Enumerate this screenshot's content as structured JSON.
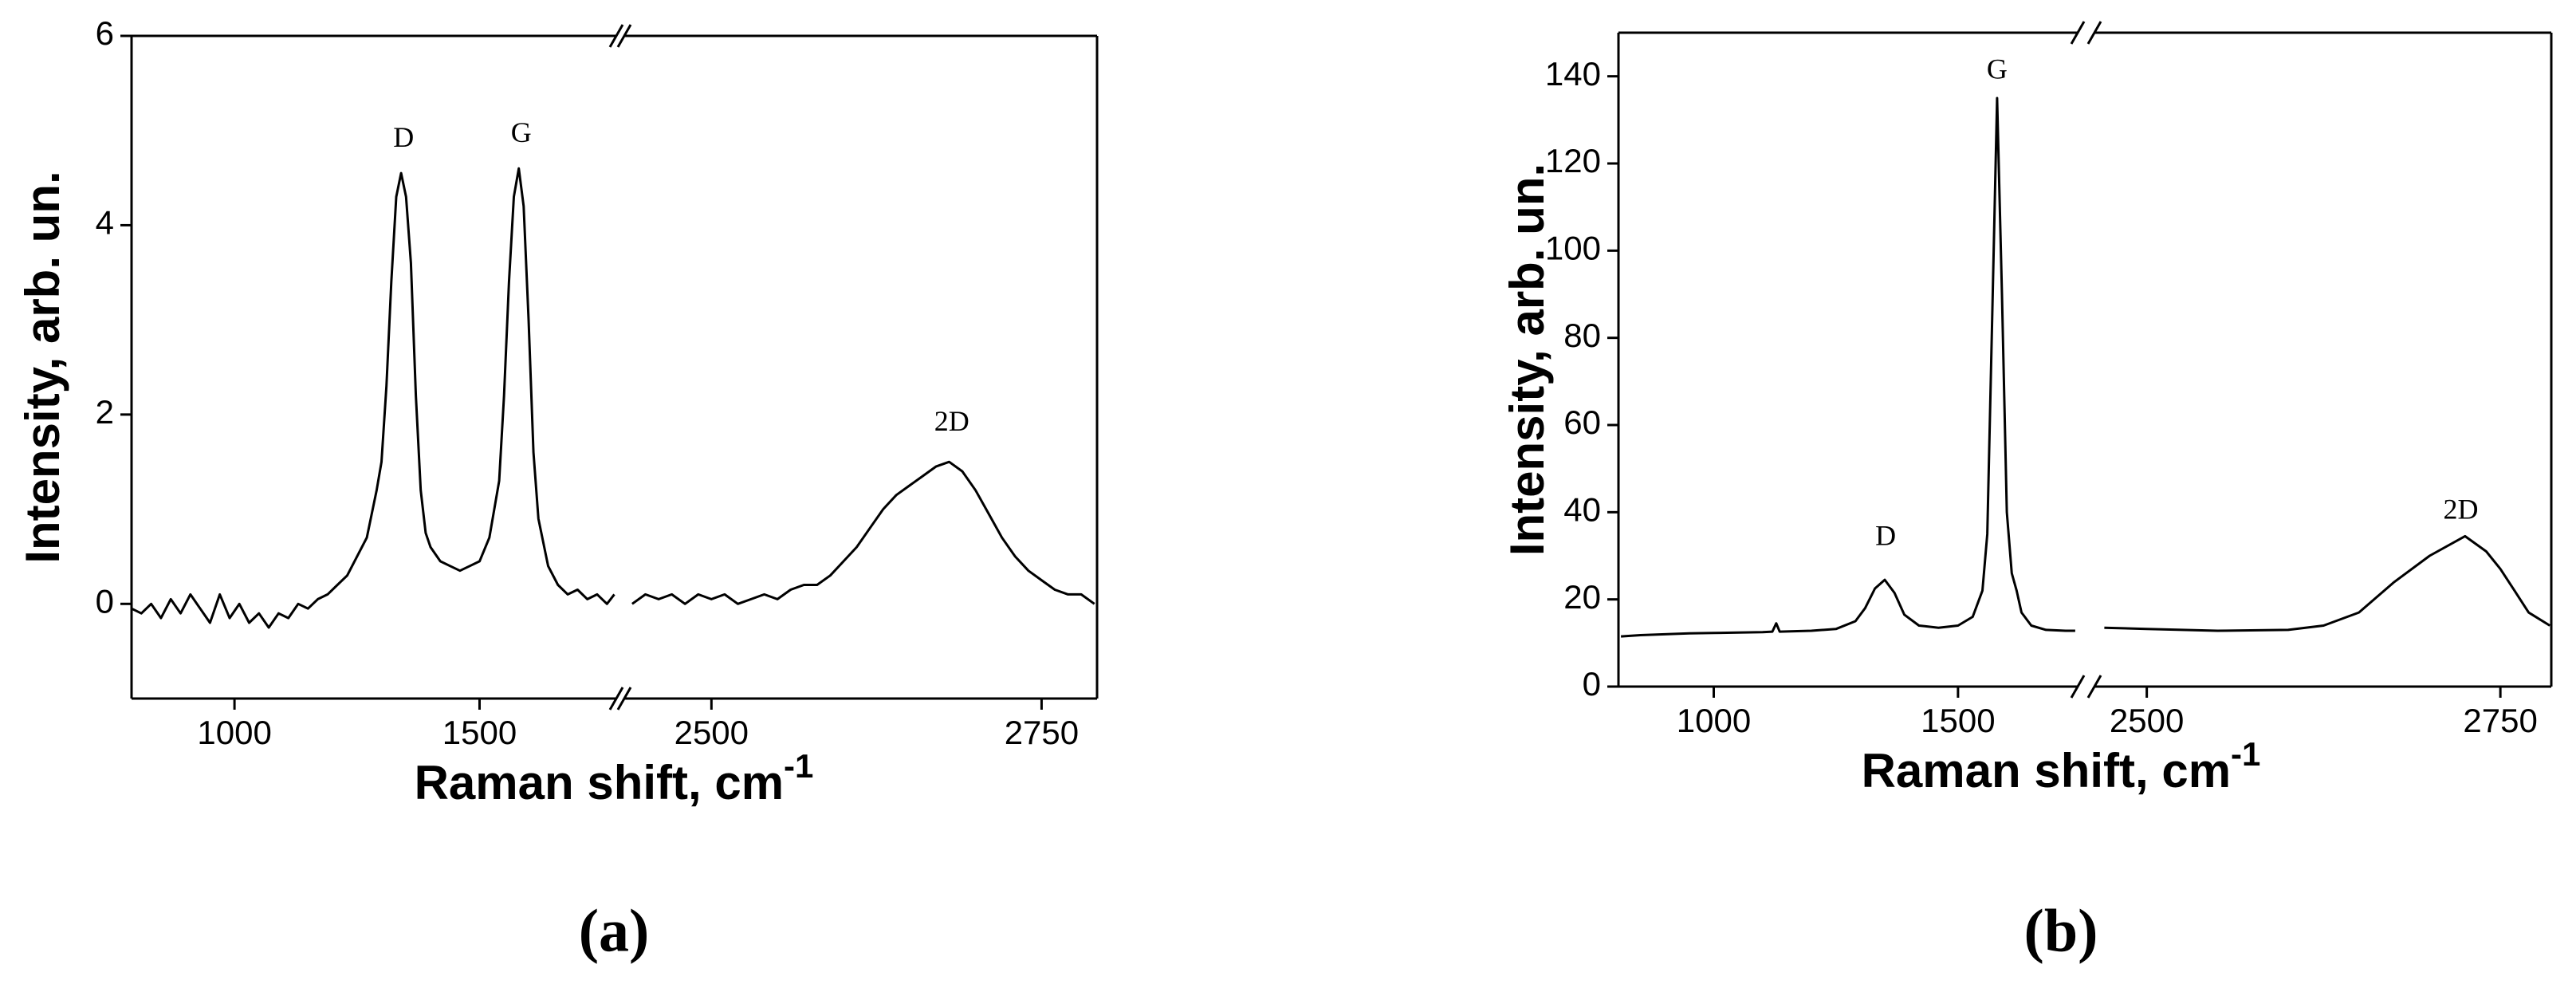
{
  "chart_data": [
    {
      "type": "line",
      "label": "(a)",
      "ylabel": "Intensity, arb. un.",
      "xlabel": "Raman shift, cm",
      "xlabel_sup": "-1",
      "color": "#000000",
      "ylim": [
        -1,
        6
      ],
      "yticks": [
        0,
        2,
        4,
        6
      ],
      "segments": [
        {
          "xlim": [
            790,
            1779
          ],
          "xticks": [
            1000,
            1500
          ],
          "x": [
            790,
            810,
            830,
            850,
            870,
            890,
            910,
            930,
            950,
            970,
            990,
            1010,
            1030,
            1050,
            1070,
            1090,
            1110,
            1130,
            1150,
            1170,
            1190,
            1210,
            1230,
            1250,
            1270,
            1290,
            1300,
            1310,
            1320,
            1330,
            1340,
            1350,
            1360,
            1370,
            1380,
            1390,
            1400,
            1420,
            1440,
            1460,
            1480,
            1500,
            1520,
            1540,
            1550,
            1560,
            1570,
            1580,
            1590,
            1600,
            1610,
            1620,
            1640,
            1660,
            1680,
            1700,
            1720,
            1740,
            1760,
            1775
          ],
          "values": [
            -0.05,
            -0.1,
            0.0,
            -0.15,
            0.05,
            -0.1,
            0.1,
            -0.05,
            -0.2,
            0.1,
            -0.15,
            0.0,
            -0.2,
            -0.1,
            -0.25,
            -0.1,
            -0.15,
            0.0,
            -0.05,
            0.05,
            0.1,
            0.2,
            0.3,
            0.5,
            0.7,
            1.2,
            1.5,
            2.3,
            3.4,
            4.3,
            4.55,
            4.3,
            3.6,
            2.2,
            1.2,
            0.75,
            0.6,
            0.45,
            0.4,
            0.35,
            0.4,
            0.45,
            0.7,
            1.3,
            2.2,
            3.4,
            4.3,
            4.6,
            4.2,
            3.0,
            1.6,
            0.9,
            0.4,
            0.2,
            0.1,
            0.15,
            0.05,
            0.1,
            0.0,
            0.1
          ]
        },
        {
          "xlim": [
            2434,
            2792
          ],
          "xticks": [
            2500,
            2750
          ],
          "x": [
            2440,
            2450,
            2460,
            2470,
            2480,
            2490,
            2500,
            2510,
            2520,
            2530,
            2540,
            2550,
            2560,
            2570,
            2580,
            2590,
            2600,
            2610,
            2620,
            2630,
            2640,
            2650,
            2660,
            2670,
            2680,
            2690,
            2700,
            2710,
            2720,
            2730,
            2740,
            2750,
            2760,
            2770,
            2780,
            2790
          ],
          "values": [
            0.0,
            0.1,
            0.05,
            0.1,
            0.0,
            0.1,
            0.05,
            0.1,
            0.0,
            0.05,
            0.1,
            0.05,
            0.15,
            0.2,
            0.2,
            0.3,
            0.45,
            0.6,
            0.8,
            1.0,
            1.15,
            1.25,
            1.35,
            1.45,
            1.5,
            1.4,
            1.2,
            0.95,
            0.7,
            0.5,
            0.35,
            0.25,
            0.15,
            0.1,
            0.1,
            0.0
          ]
        }
      ],
      "annotations": [
        {
          "text": "D",
          "x": 1345,
          "y": 4.9
        },
        {
          "text": "G",
          "x": 1585,
          "y": 4.95
        },
        {
          "text": "2D",
          "x": 2682,
          "y": 1.9
        }
      ]
    },
    {
      "type": "line",
      "label": "(b)",
      "ylabel": "Intensity, arb. un.",
      "xlabel": "Raman shift, cm",
      "xlabel_sup": "-1",
      "color": "#000000",
      "ylim": [
        0,
        150
      ],
      "yticks": [
        0,
        20,
        40,
        60,
        80,
        100,
        120,
        140
      ],
      "segments": [
        {
          "xlim": [
            805,
            1745
          ],
          "xticks": [
            1000,
            1500
          ],
          "x": [
            810,
            850,
            900,
            950,
            1000,
            1050,
            1100,
            1120,
            1128,
            1135,
            1200,
            1250,
            1290,
            1310,
            1330,
            1350,
            1370,
            1390,
            1420,
            1460,
            1500,
            1530,
            1550,
            1560,
            1570,
            1580,
            1590,
            1600,
            1610,
            1620,
            1630,
            1650,
            1680,
            1720,
            1740
          ],
          "values": [
            11.5,
            11.8,
            12,
            12.2,
            12.3,
            12.4,
            12.5,
            12.6,
            14.5,
            12.6,
            12.8,
            13.2,
            15,
            18,
            22.5,
            24.5,
            21.5,
            16.5,
            14,
            13.5,
            14,
            16,
            22,
            35,
            85,
            135,
            90,
            40,
            26,
            22,
            17,
            14,
            13,
            12.8,
            12.8
          ]
        },
        {
          "xlim": [
            2463,
            2786
          ],
          "xticks": [
            2500,
            2750
          ],
          "x": [
            2470,
            2500,
            2550,
            2600,
            2625,
            2650,
            2675,
            2700,
            2725,
            2740,
            2750,
            2760,
            2770,
            2785
          ],
          "values": [
            13.5,
            13.2,
            12.8,
            13,
            14,
            17,
            24,
            30,
            34.5,
            31,
            27,
            22,
            17,
            14
          ]
        }
      ],
      "annotations": [
        {
          "text": "D",
          "x": 1352,
          "y": 34
        },
        {
          "text": "G",
          "x": 1580,
          "y": 141
        },
        {
          "text": "2D",
          "x": 2722,
          "y": 40
        }
      ]
    }
  ]
}
